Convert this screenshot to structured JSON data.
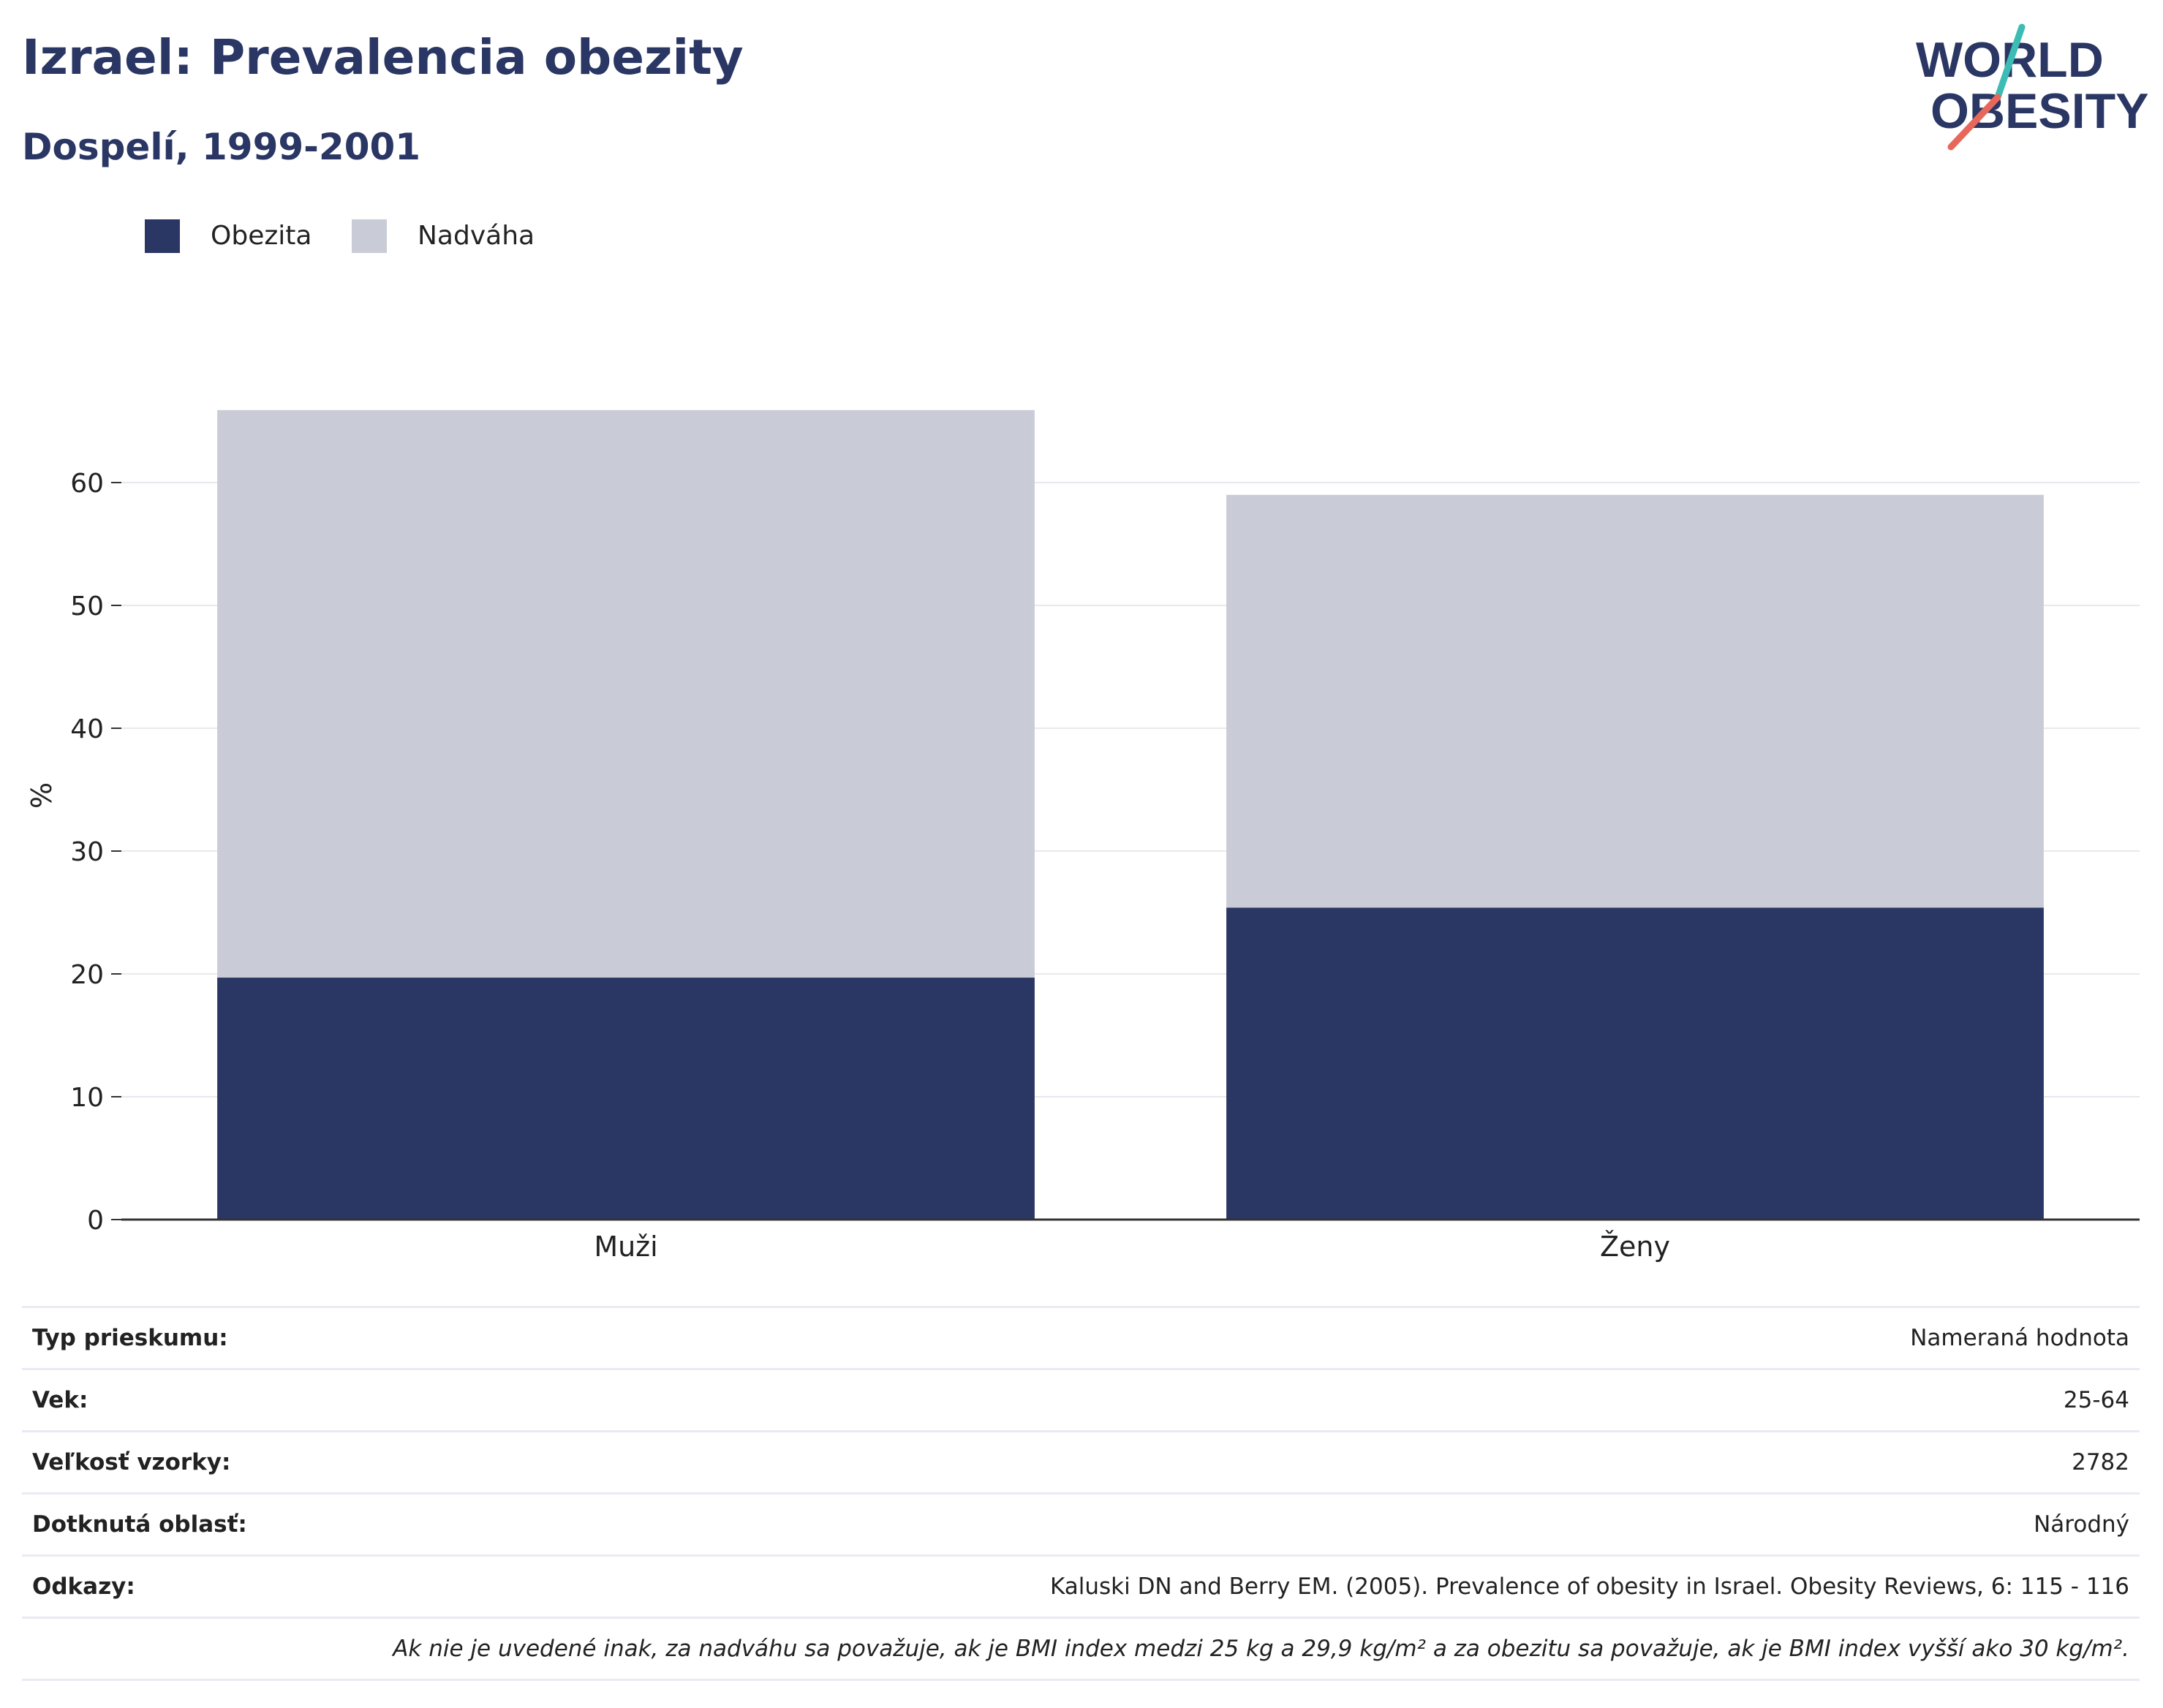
{
  "title": "Izrael: Prevalencia obezity",
  "subtitle": "Dospelí, 1999-2001",
  "logo": {
    "line1": "WORLD",
    "line2": "OBESITY"
  },
  "colors": {
    "title": "#2a3663",
    "obesity": "#2a3663",
    "overweight": "#c9ccd7",
    "grid": "#e8e8ee",
    "axis": "#333333",
    "logo_teal": "#3cbcb4",
    "logo_coral": "#e7685a"
  },
  "legend": [
    {
      "label": "Obezita",
      "color": "#2a3663"
    },
    {
      "label": "Nadváha",
      "color": "#c9ccd7"
    }
  ],
  "chart_data": {
    "type": "bar",
    "stacked": true,
    "categories": [
      "Muži",
      "Ženy"
    ],
    "series": [
      {
        "name": "Obezita",
        "values": [
          19.7,
          25.4
        ]
      },
      {
        "name": "Nadváha",
        "values": [
          46.2,
          33.6
        ]
      }
    ],
    "ylabel": "%",
    "xlabel": "",
    "ylim": [
      0,
      70
    ],
    "yticks": [
      0,
      10,
      20,
      30,
      40,
      50,
      60
    ],
    "grid": true,
    "legend_position": "top-left"
  },
  "info": {
    "rows": [
      {
        "key": "Typ prieskumu:",
        "value": "Nameraná hodnota"
      },
      {
        "key": "Vek:",
        "value": "25-64"
      },
      {
        "key": "Veľkosť vzorky:",
        "value": "2782"
      },
      {
        "key": "Dotknutá oblasť:",
        "value": "Národný"
      },
      {
        "key": "Odkazy:",
        "value": "Kaluski DN and Berry EM. (2005). Prevalence of obesity in Israel. Obesity Reviews, 6: 115 - 116"
      }
    ],
    "note": "Ak nie je uvedené inak, za nadváhu sa považuje, ak je BMI index medzi 25 kg a 29,9 kg/m² a za obezitu sa považuje, ak je BMI index vyšší ako 30 kg/m²."
  }
}
